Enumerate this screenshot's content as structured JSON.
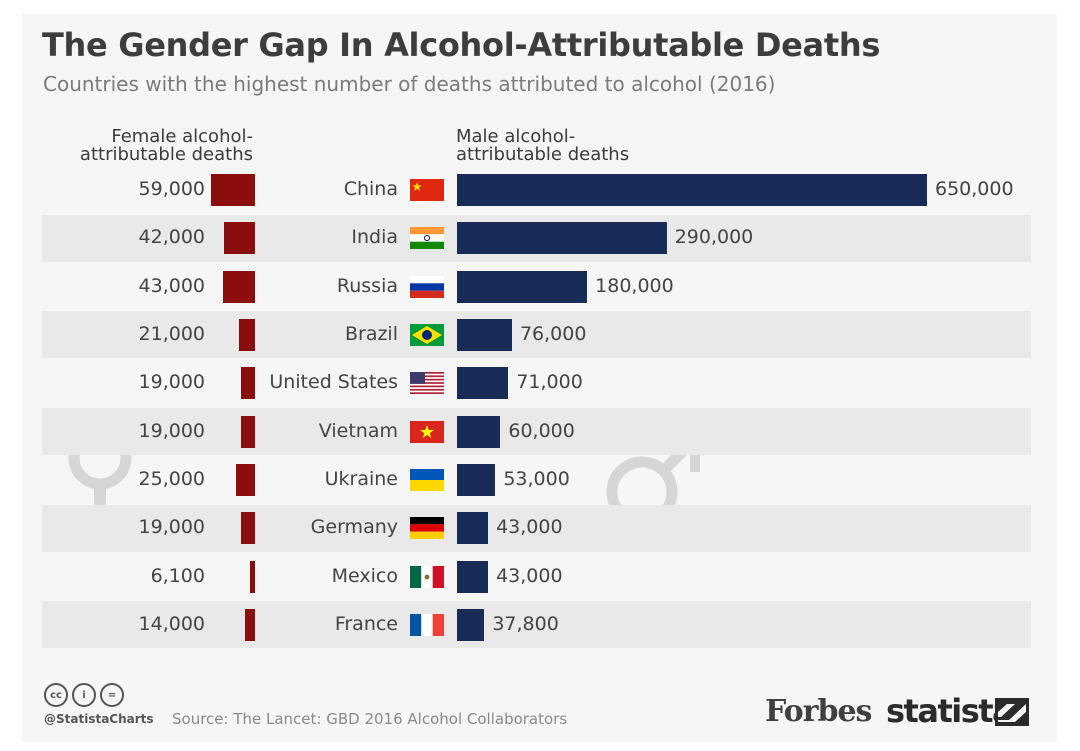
{
  "title": "The Gender Gap In Alcohol-Attributable Deaths",
  "subtitle": "Countries with the highest number of deaths attributed to alcohol (2016)",
  "female_header": "Female alcohol-\nattributable deaths",
  "male_header": "Male alcohol-\nattributable deaths",
  "colors": {
    "female": "#8b0d0d",
    "male": "#182c57",
    "stripe": "#e9e9e9",
    "symbol": "#d6d6d6"
  },
  "chart_data": {
    "type": "bar",
    "title": "The Gender Gap In Alcohol-Attributable Deaths",
    "subtitle": "Countries with the highest number of deaths attributed to alcohol (2016)",
    "categories": [
      "China",
      "India",
      "Russia",
      "Brazil",
      "United States",
      "Vietnam",
      "Ukraine",
      "Germany",
      "Mexico",
      "France"
    ],
    "series": [
      {
        "name": "Female alcohol-attributable deaths",
        "values": [
          59000,
          42000,
          43000,
          21000,
          19000,
          19000,
          25000,
          19000,
          6100,
          14000
        ],
        "labels": [
          "59,000",
          "42,000",
          "43,000",
          "21,000",
          "19,000",
          "19,000",
          "25,000",
          "19,000",
          "6,100",
          "14,000"
        ]
      },
      {
        "name": "Male alcohol-attributable deaths",
        "values": [
          650000,
          290000,
          180000,
          76000,
          71000,
          60000,
          53000,
          43000,
          43000,
          37800
        ],
        "labels": [
          "650,000",
          "290,000",
          "180,000",
          "76,000",
          "71,000",
          "60,000",
          "53,000",
          "43,000",
          "43,000",
          "37,800"
        ]
      }
    ],
    "flags": [
      "china-flag",
      "india-flag",
      "russia-flag",
      "brazil-flag",
      "usa-flag",
      "vietnam-flag",
      "ukraine-flag",
      "germany-flag",
      "mexico-flag",
      "france-flag"
    ],
    "legend": "none",
    "grid": false
  },
  "footer": {
    "cc_icons": [
      "cc",
      "i",
      "="
    ],
    "handle": "@StatistaCharts",
    "source": "Source: The Lancet: GBD 2016 Alcohol Collaborators",
    "forbes": "Forbes",
    "statista": "statista"
  }
}
